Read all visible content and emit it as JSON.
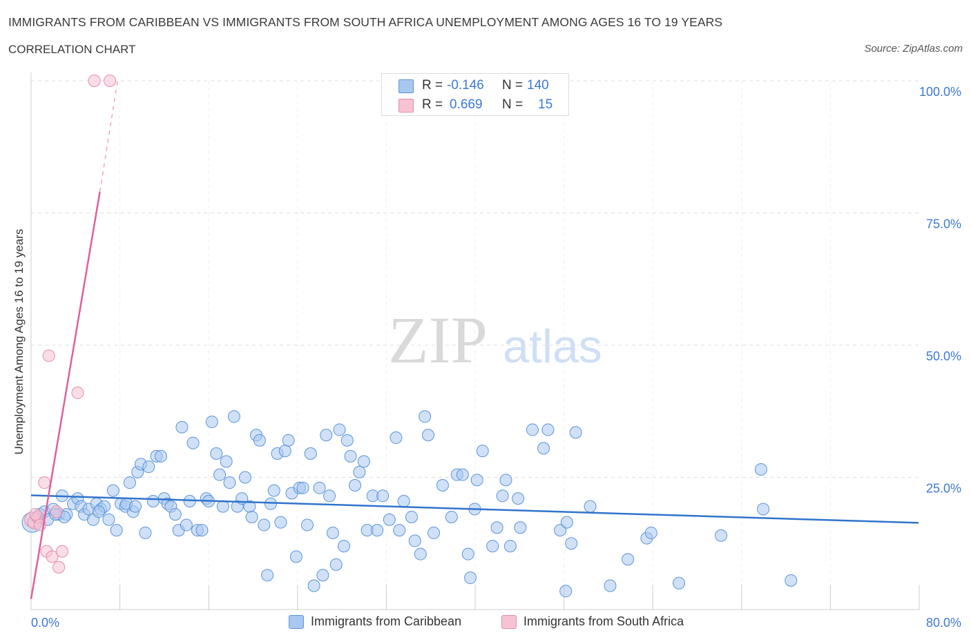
{
  "title": "IMMIGRANTS FROM CARIBBEAN VS IMMIGRANTS FROM SOUTH AFRICA UNEMPLOYMENT AMONG AGES 16 TO 19 YEARS",
  "subtitle": "CORRELATION CHART",
  "source": "Source: ZipAtlas.com",
  "stats": [
    {
      "r_label": "R =",
      "r_value": "-0.146",
      "n_label": "N =",
      "n_value": "140"
    },
    {
      "r_label": "R =",
      "r_value": "0.669",
      "n_label": "N =",
      "n_value": "15"
    }
  ],
  "colors": {
    "blue_fill": "#a9c8f0",
    "blue_stroke": "#5b93d8",
    "blue_line": "#2f74cc",
    "pink_fill": "#f6c3d3",
    "pink_stroke": "#e78aa9",
    "pink_line": "#e0609a",
    "axis_text": "#3c78d8",
    "grid": "#dddddd"
  },
  "chart_data": {
    "type": "scatter",
    "title": "IMMIGRANTS FROM CARIBBEAN VS IMMIGRANTS FROM SOUTH AFRICA UNEMPLOYMENT AMONG AGES 16 TO 19 YEARS",
    "xlabel": "",
    "ylabel": "Unemployment Among Ages 16 to 19 years",
    "xlim": [
      0,
      80
    ],
    "ylim": [
      0,
      100
    ],
    "x_ticks": [
      "0.0%",
      "80.0%"
    ],
    "y_ticks": [
      {
        "value": 25,
        "label": "25.0%"
      },
      {
        "value": 50,
        "label": "50.0%"
      },
      {
        "value": 75,
        "label": "75.0%"
      },
      {
        "value": 100,
        "label": "100.0%"
      }
    ],
    "watermark": {
      "zip": "ZIP",
      "atlas": "atlas"
    },
    "series": [
      {
        "name": "Immigrants from Caribbean",
        "color": "blue",
        "trend": {
          "x0": 0,
          "y0": 21.6,
          "x1": 80,
          "y1": 16.4,
          "dashed_to": null
        },
        "points": [
          [
            0.1,
            16.5,
            12
          ],
          [
            0.5,
            17.5,
            7
          ],
          [
            0.8,
            18,
            7
          ],
          [
            1.2,
            18.5,
            7
          ],
          [
            1.5,
            17,
            7
          ],
          [
            2,
            19,
            7
          ],
          [
            2.5,
            18,
            7
          ],
          [
            2.8,
            21.5,
            7
          ],
          [
            3.2,
            18,
            7
          ],
          [
            3.8,
            20,
            7
          ],
          [
            4.2,
            21,
            7
          ],
          [
            4.5,
            19.5,
            7
          ],
          [
            4.8,
            18,
            7
          ],
          [
            5.2,
            19,
            7
          ],
          [
            5.6,
            17,
            7
          ],
          [
            5.9,
            20,
            7
          ],
          [
            6.3,
            19,
            7
          ],
          [
            6.6,
            19.5,
            7
          ],
          [
            7,
            17,
            7
          ],
          [
            7.4,
            22.5,
            7
          ],
          [
            7.7,
            15,
            7
          ],
          [
            8.1,
            20,
            7
          ],
          [
            8.5,
            19.5,
            7
          ],
          [
            8.9,
            24,
            7
          ],
          [
            9.2,
            18.5,
            7
          ],
          [
            9.6,
            26,
            7
          ],
          [
            9.9,
            27.5,
            7
          ],
          [
            10.3,
            14.5,
            7
          ],
          [
            10.6,
            27,
            7
          ],
          [
            11,
            20.5,
            7
          ],
          [
            11.3,
            29,
            7
          ],
          [
            11.7,
            29,
            7
          ],
          [
            12,
            21,
            7
          ],
          [
            12.3,
            20,
            7
          ],
          [
            12.6,
            19.5,
            7
          ],
          [
            13,
            18,
            7
          ],
          [
            13.3,
            15,
            7
          ],
          [
            13.6,
            34.5,
            7
          ],
          [
            14,
            16,
            7
          ],
          [
            14.3,
            20.5,
            7
          ],
          [
            14.6,
            31.5,
            7
          ],
          [
            15,
            15,
            7
          ],
          [
            15.4,
            15,
            7
          ],
          [
            15.8,
            21,
            7
          ],
          [
            16,
            20.5,
            7
          ],
          [
            16.3,
            35.5,
            7
          ],
          [
            16.7,
            29.5,
            7
          ],
          [
            17,
            25.5,
            7
          ],
          [
            17.3,
            19.5,
            7
          ],
          [
            17.6,
            28,
            7
          ],
          [
            17.9,
            24,
            7
          ],
          [
            18.3,
            36.5,
            7
          ],
          [
            18.6,
            19.5,
            7
          ],
          [
            19,
            21,
            7
          ],
          [
            19.3,
            25,
            7
          ],
          [
            19.7,
            19.5,
            7
          ],
          [
            19.9,
            17.5,
            7
          ],
          [
            20.3,
            33,
            7
          ],
          [
            20.6,
            32,
            7
          ],
          [
            21,
            16,
            7
          ],
          [
            21.3,
            6.5,
            7
          ],
          [
            21.6,
            20,
            7
          ],
          [
            21.9,
            22.5,
            7
          ],
          [
            22.2,
            29.5,
            7
          ],
          [
            22.5,
            16.5,
            7
          ],
          [
            22.9,
            30,
            7
          ],
          [
            23.2,
            32,
            7
          ],
          [
            23.5,
            22,
            7
          ],
          [
            23.9,
            10,
            7
          ],
          [
            24.2,
            23,
            7
          ],
          [
            24.5,
            23,
            7
          ],
          [
            24.9,
            16,
            7
          ],
          [
            25.2,
            29.5,
            7
          ],
          [
            25.5,
            4.5,
            7
          ],
          [
            26,
            23,
            7
          ],
          [
            26.3,
            6.5,
            7
          ],
          [
            26.6,
            33,
            7
          ],
          [
            26.9,
            21.5,
            7
          ],
          [
            27.2,
            14.5,
            7
          ],
          [
            27.5,
            8.5,
            7
          ],
          [
            27.8,
            34,
            7
          ],
          [
            28.2,
            12,
            7
          ],
          [
            28.5,
            32,
            7
          ],
          [
            28.8,
            29,
            7
          ],
          [
            29.2,
            23.5,
            7
          ],
          [
            29.6,
            26,
            7
          ],
          [
            30,
            28,
            7
          ],
          [
            30.3,
            15,
            7
          ],
          [
            30.8,
            21.5,
            7
          ],
          [
            31.2,
            15,
            7
          ],
          [
            31.7,
            21.5,
            7
          ],
          [
            32.3,
            17,
            7
          ],
          [
            32.9,
            32.5,
            7
          ],
          [
            33.2,
            15,
            7
          ],
          [
            33.6,
            20.5,
            7
          ],
          [
            34.3,
            17.5,
            7
          ],
          [
            34.6,
            13,
            7
          ],
          [
            35.1,
            10.5,
            7
          ],
          [
            35.5,
            36.5,
            7
          ],
          [
            35.8,
            33,
            7
          ],
          [
            36.3,
            14.5,
            7
          ],
          [
            37.1,
            23.5,
            7
          ],
          [
            37.9,
            17.5,
            7
          ],
          [
            38.4,
            25.5,
            7
          ],
          [
            38.9,
            25.5,
            7
          ],
          [
            39.4,
            10.5,
            7
          ],
          [
            39.6,
            6,
            7
          ],
          [
            40,
            19,
            7
          ],
          [
            40.2,
            24.5,
            7
          ],
          [
            40.7,
            30,
            7
          ],
          [
            41.6,
            12,
            7
          ],
          [
            42,
            15.5,
            7
          ],
          [
            42.5,
            21.5,
            7
          ],
          [
            42.8,
            24.5,
            7
          ],
          [
            43.2,
            12,
            7
          ],
          [
            43.9,
            21,
            7
          ],
          [
            44.1,
            15.5,
            7
          ],
          [
            45.2,
            34,
            7
          ],
          [
            46.2,
            30.5,
            7
          ],
          [
            46.6,
            34,
            7
          ],
          [
            47.7,
            15,
            7
          ],
          [
            48.3,
            16.5,
            7
          ],
          [
            48.7,
            12.5,
            7
          ],
          [
            49.1,
            33.5,
            7
          ],
          [
            48.2,
            3.5,
            7
          ],
          [
            50.4,
            19.5,
            7
          ],
          [
            52.2,
            4.5,
            7
          ],
          [
            53.8,
            9.5,
            7
          ],
          [
            55.5,
            13.5,
            7
          ],
          [
            55.9,
            14.5,
            7
          ],
          [
            58.4,
            5,
            7
          ],
          [
            62.2,
            14,
            7
          ],
          [
            65.8,
            26.5,
            7
          ],
          [
            66,
            19,
            7
          ],
          [
            68.5,
            5.5,
            7
          ],
          [
            8.6,
            20,
            7
          ],
          [
            9.4,
            19.5,
            7
          ],
          [
            6.1,
            18.5,
            7
          ],
          [
            3,
            17.5,
            7
          ],
          [
            2.2,
            18,
            7
          ]
        ]
      },
      {
        "name": "Immigrants from South Africa",
        "color": "pink",
        "trend": {
          "x0": 0,
          "y0": 2,
          "x1": 6.2,
          "y1": 79,
          "dashed_to": {
            "x": 7.8,
            "y": 100
          }
        },
        "points": [
          [
            0.1,
            17,
            9
          ],
          [
            0.3,
            16.5,
            8
          ],
          [
            0.6,
            17.5,
            7
          ],
          [
            1.2,
            24,
            7
          ],
          [
            1.4,
            11,
            7
          ],
          [
            1.6,
            48,
            7
          ],
          [
            1.9,
            10,
            7
          ],
          [
            2.5,
            8,
            7
          ],
          [
            2.8,
            11,
            7
          ],
          [
            4.2,
            41,
            7
          ],
          [
            5.7,
            100,
            7
          ],
          [
            7.1,
            100,
            7
          ],
          [
            2.3,
            18.5,
            7
          ],
          [
            0.8,
            16,
            7
          ],
          [
            0.4,
            18,
            7
          ]
        ]
      }
    ]
  }
}
